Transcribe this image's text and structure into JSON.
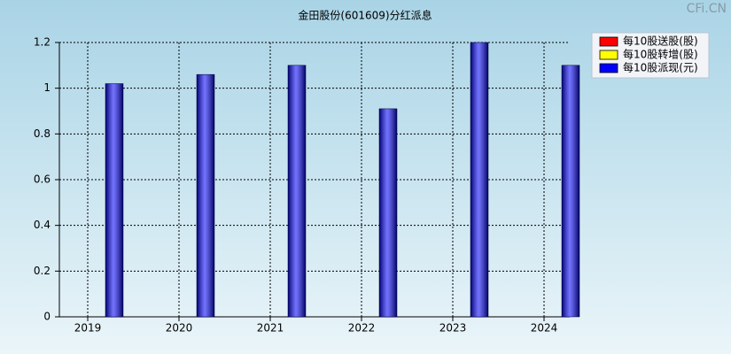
{
  "chart_data": {
    "type": "bar",
    "title": "金田股份(601609)分红派息",
    "watermark": "CFi.CN",
    "categories": [
      "2019",
      "2020",
      "2021",
      "2022",
      "2023",
      "2024"
    ],
    "series": [
      {
        "name": "每10股送股(股)",
        "color": "#ff0000",
        "values": [
          0,
          0,
          0,
          0,
          0,
          0
        ]
      },
      {
        "name": "每10股转增(股)",
        "color": "#ffff00",
        "values": [
          0,
          0,
          0,
          0,
          0,
          0
        ]
      },
      {
        "name": "每10股派现(元)",
        "color": "#0000ff",
        "values": [
          1.02,
          1.06,
          1.1,
          0.91,
          1.2,
          1.1
        ]
      }
    ],
    "ylim": [
      0,
      1.2
    ],
    "yticks": [
      0,
      0.2,
      0.4,
      0.6,
      0.8,
      1,
      1.2
    ],
    "grid": true,
    "legend": "top-right"
  }
}
